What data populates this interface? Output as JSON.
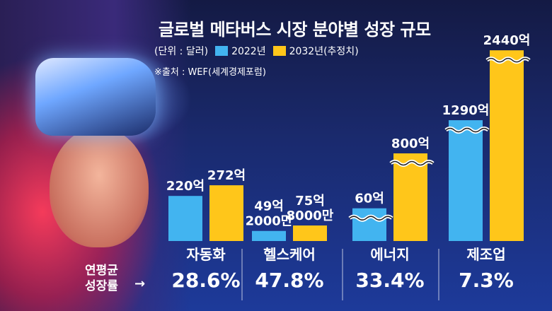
{
  "title": "글로벌 메타버스 시장 분야별 성장 규모",
  "unit_label": "(단위 : 달러)",
  "source": "※출처 : WEF(세계경제포럼)",
  "growth_label": "연평균\n성장률",
  "colors": {
    "s2022": "#42b4f0",
    "s2032": "#ffc61a",
    "arrow": "→"
  },
  "chart_data": {
    "type": "bar",
    "categories": [
      "자동화",
      "헬스케어",
      "에너지",
      "제조업"
    ],
    "series": [
      {
        "name": "2022년",
        "values": [
          220,
          49.2,
          60,
          1290
        ],
        "labels": [
          "220억",
          "49억\n2000만",
          "60억",
          "1290억"
        ]
      },
      {
        "name": "2032년(추정치)",
        "values": [
          272,
          75.8,
          800,
          2440
        ],
        "labels": [
          "272억",
          "75억\n8000만",
          "800억",
          "2440억"
        ]
      }
    ],
    "growth_rates": [
      "28.6%",
      "47.8%",
      "33.4%",
      "7.3%"
    ],
    "axis_break": [
      false,
      false,
      true,
      true
    ]
  }
}
